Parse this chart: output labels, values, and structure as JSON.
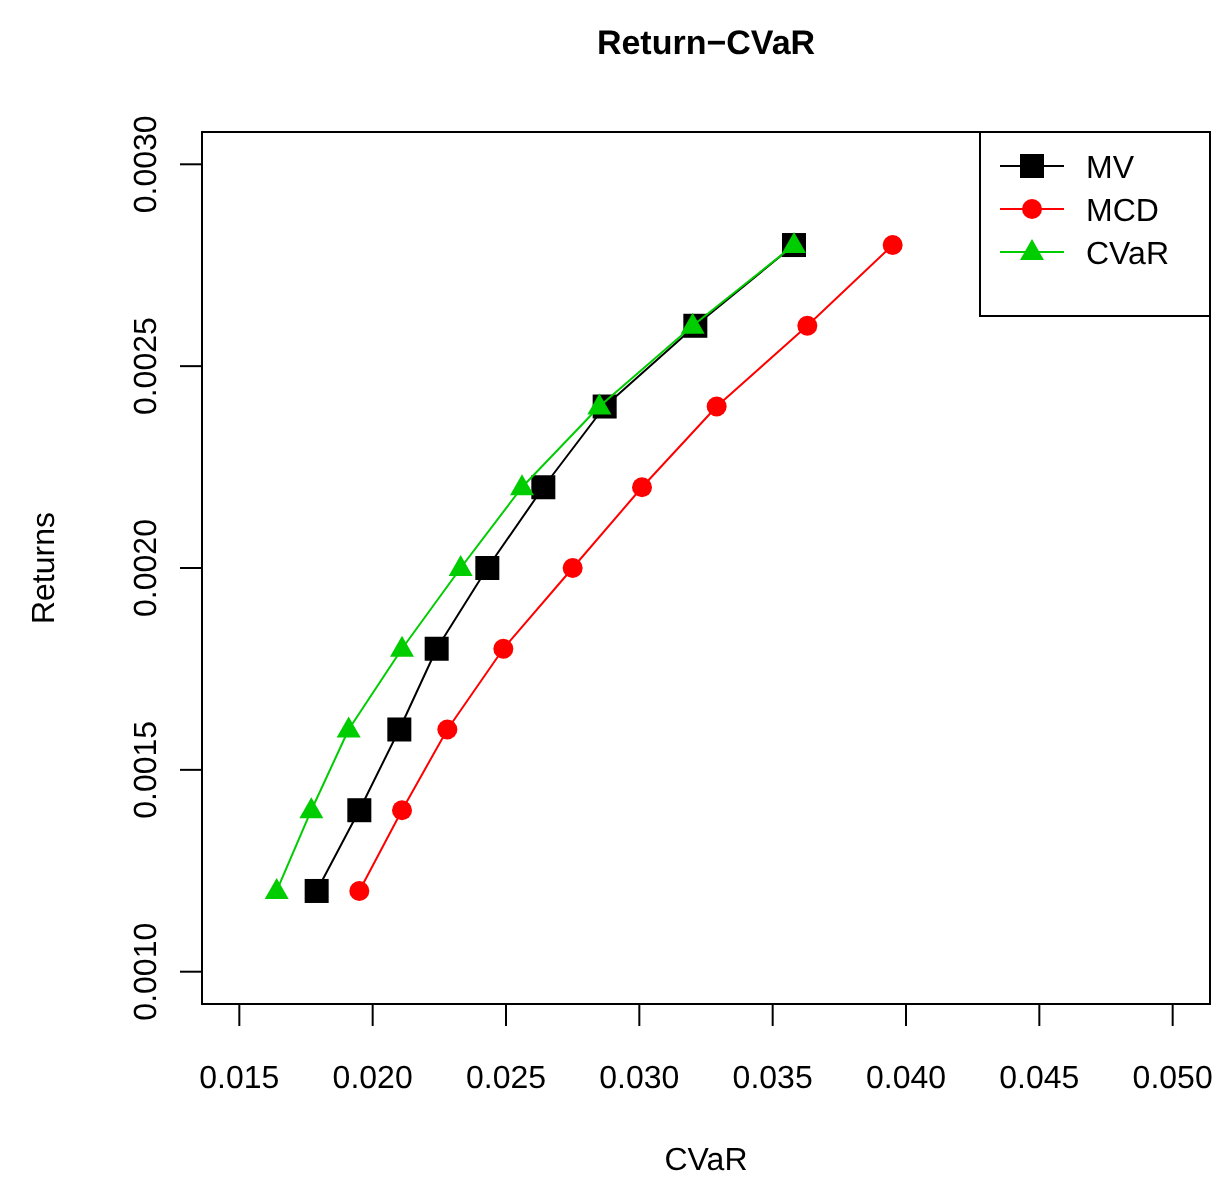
{
  "chart_data": {
    "type": "line",
    "title": "Return−CVaR",
    "xlabel": "CVaR",
    "ylabel": "Returns",
    "xlim": [
      0.0136,
      0.0514
    ],
    "ylim": [
      0.00092,
      0.00308
    ],
    "xticks": [
      0.015,
      {
        "value": 0.02,
        "label": "0.020"
      },
      0.025,
      {
        "value": 0.03,
        "label": "0.030"
      },
      0.035,
      {
        "value": 0.04,
        "label": "0.040"
      },
      0.045,
      {
        "value": 0.05,
        "label": "0.050"
      }
    ],
    "yticks": [
      {
        "value": 0.001,
        "label": "0.0010"
      },
      0.0015,
      {
        "value": 0.002,
        "label": "0.0020"
      },
      0.0025,
      {
        "value": 0.003,
        "label": "0.0030"
      }
    ],
    "grid": false,
    "legend": "top right",
    "series": [
      {
        "name": "MV",
        "color": "#000000",
        "marker": "square",
        "x": [
          0.0179,
          0.0195,
          0.021,
          0.0224,
          0.0243,
          0.0264,
          0.0287,
          0.0321,
          0.0358
        ],
        "values": [
          0.0012,
          0.0014,
          0.0016,
          0.0018,
          0.002,
          0.0022,
          0.0024,
          0.0026,
          0.0028
        ]
      },
      {
        "name": "MCD",
        "color": "#ff0000",
        "marker": "circle",
        "x": [
          0.0195,
          0.0211,
          0.0228,
          0.0249,
          0.0275,
          0.0301,
          0.0329,
          0.0363,
          0.0395
        ],
        "values": [
          0.0012,
          0.0014,
          0.0016,
          0.0018,
          0.002,
          0.0022,
          0.0024,
          0.0026,
          0.0028
        ]
      },
      {
        "name": "CVaR",
        "color": "#00cd00",
        "marker": "triangle",
        "x": [
          0.0164,
          0.0177,
          0.0191,
          0.0211,
          0.0233,
          0.0256,
          0.0285,
          0.032,
          0.0358
        ],
        "values": [
          0.0012,
          0.0014,
          0.0016,
          0.0018,
          0.002,
          0.0022,
          0.0024,
          0.0026,
          0.0028
        ]
      }
    ]
  }
}
